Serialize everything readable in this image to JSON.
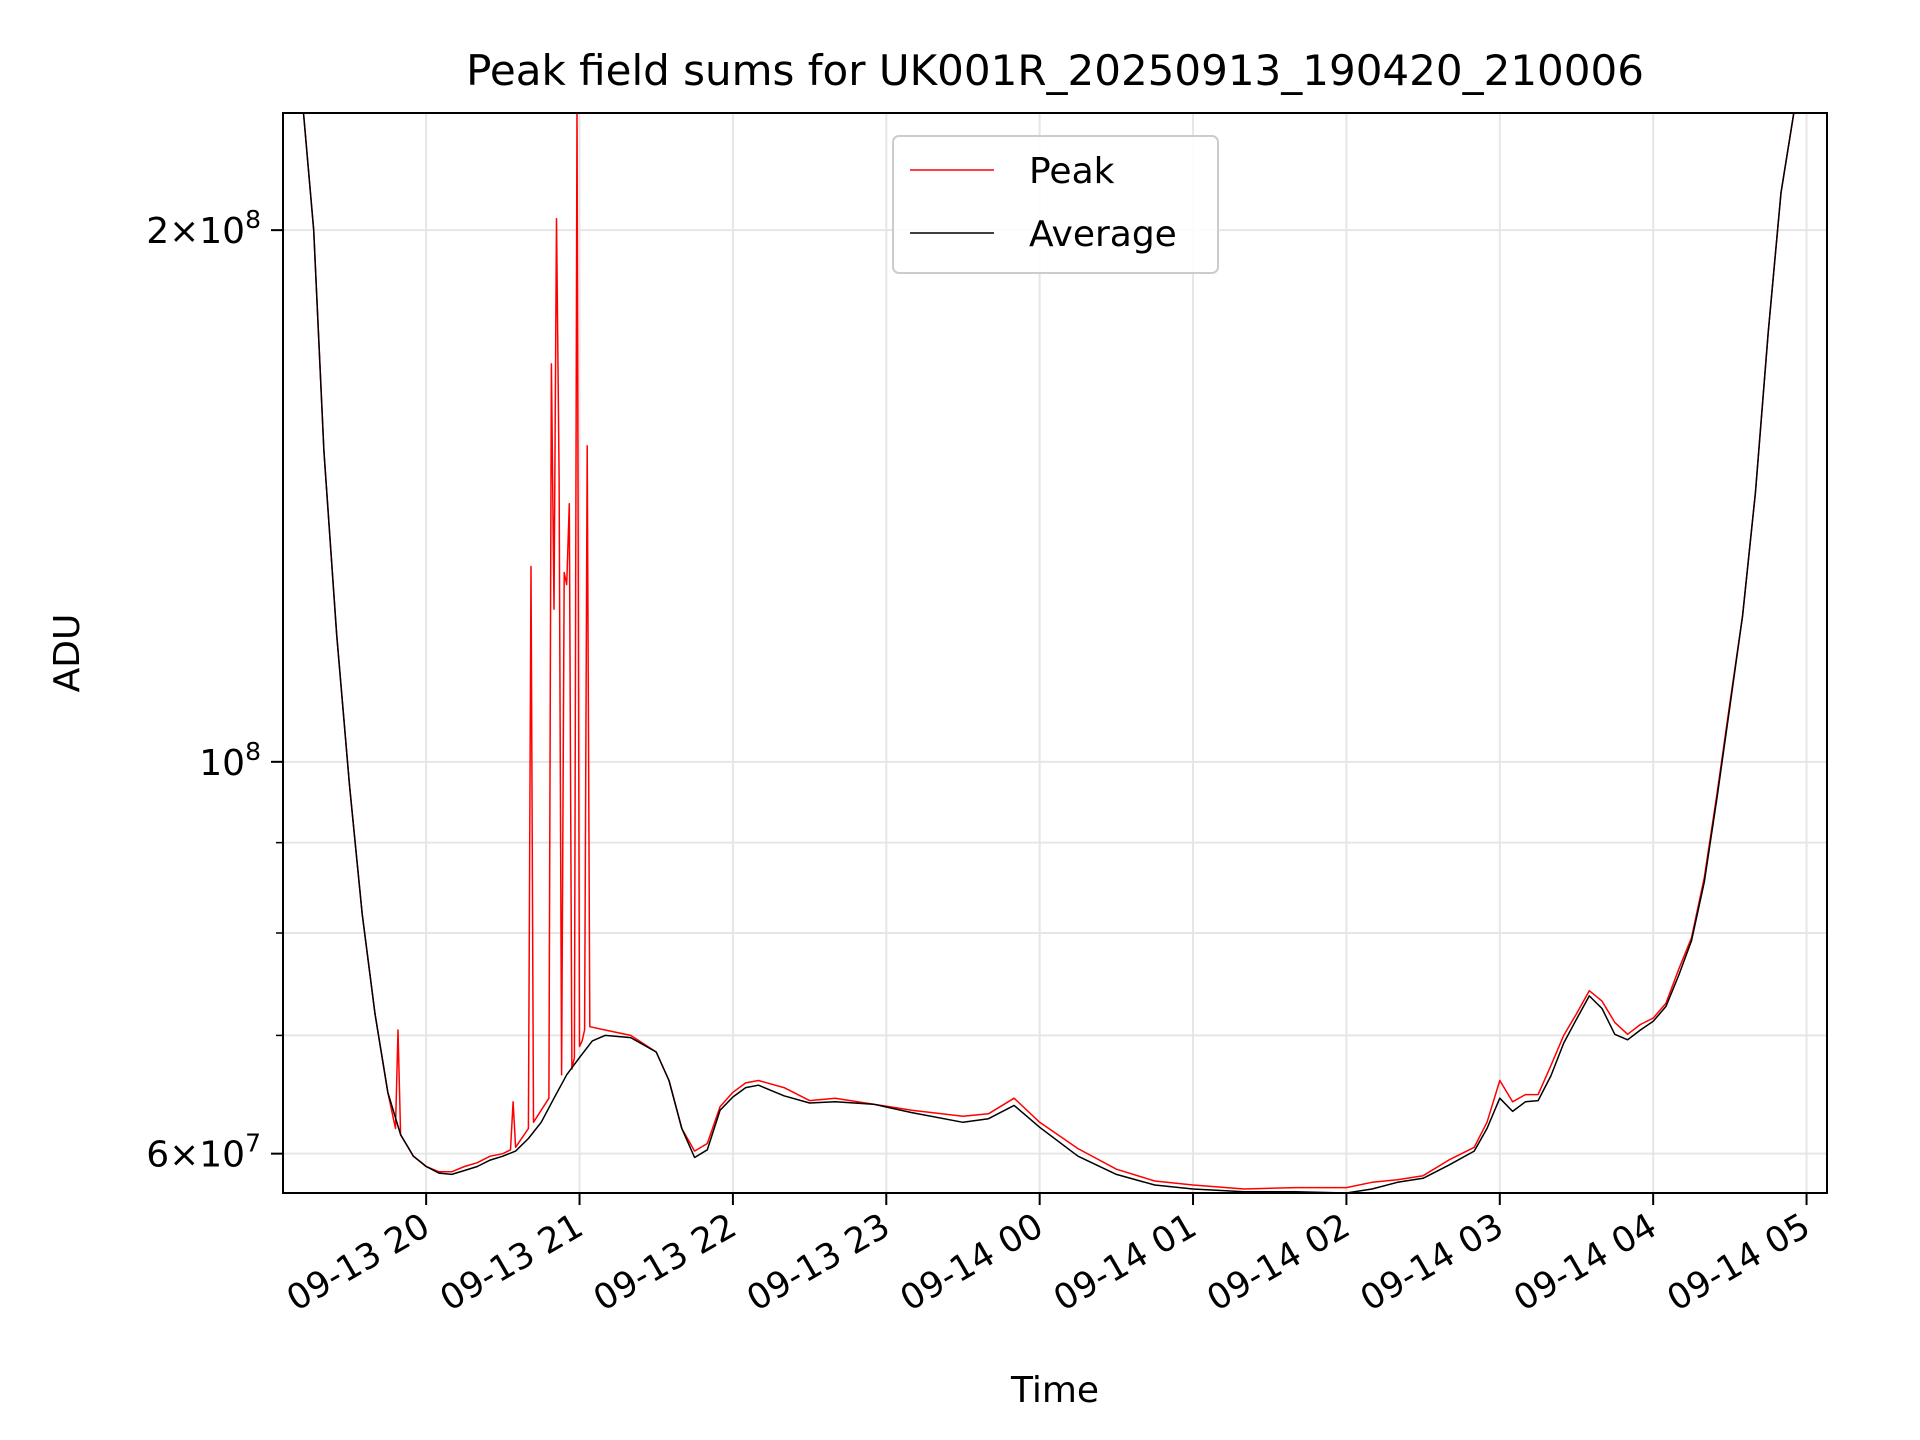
{
  "chart_data": {
    "type": "line",
    "title": "Peak field sums for UK001R_20250913_190420_210006",
    "xlabel": "Time",
    "ylabel": "ADU",
    "yscale": "log",
    "xlim": [
      "2025-09-13 19:04",
      "2025-09-14 05:08"
    ],
    "ylim": [
      57000000,
      233000000
    ],
    "x_ticks": [
      {
        "value": "2025-09-13 20:00",
        "label": "09-13 20"
      },
      {
        "value": "2025-09-13 21:00",
        "label": "09-13 21"
      },
      {
        "value": "2025-09-13 22:00",
        "label": "09-13 22"
      },
      {
        "value": "2025-09-13 23:00",
        "label": "09-13 23"
      },
      {
        "value": "2025-09-14 00:00",
        "label": "09-14 00"
      },
      {
        "value": "2025-09-14 01:00",
        "label": "09-14 01"
      },
      {
        "value": "2025-09-14 02:00",
        "label": "09-14 02"
      },
      {
        "value": "2025-09-14 03:00",
        "label": "09-14 03"
      },
      {
        "value": "2025-09-14 04:00",
        "label": "09-14 04"
      },
      {
        "value": "2025-09-14 05:00",
        "label": "09-14 05"
      }
    ],
    "y_major_ticks": [
      {
        "value": 60000000,
        "mantissa": "6",
        "base": "10",
        "exponent": "7"
      },
      {
        "value": 100000000,
        "mantissa": "",
        "base": "10",
        "exponent": "8"
      },
      {
        "value": 200000000,
        "mantissa": "2",
        "base": "10",
        "exponent": "8"
      }
    ],
    "y_minor_ticks": [
      70000000,
      80000000,
      90000000
    ],
    "grid": true,
    "legend_position": "upper-center",
    "series": [
      {
        "name": "Peak",
        "color": "#ff0000",
        "x": [
          "2025-09-13 19:04",
          "2025-09-13 19:12",
          "2025-09-13 19:16",
          "2025-09-13 19:20",
          "2025-09-13 19:25",
          "2025-09-13 19:30",
          "2025-09-13 19:35",
          "2025-09-13 19:40",
          "2025-09-13 19:45",
          "2025-09-13 19:48",
          "2025-09-13 19:49",
          "2025-09-13 19:50",
          "2025-09-13 19:55",
          "2025-09-13 20:00",
          "2025-09-13 20:05",
          "2025-09-13 20:10",
          "2025-09-13 20:15",
          "2025-09-13 20:20",
          "2025-09-13 20:25",
          "2025-09-13 20:30",
          "2025-09-13 20:33",
          "2025-09-13 20:34",
          "2025-09-13 20:35",
          "2025-09-13 20:40",
          "2025-09-13 20:41",
          "2025-09-13 20:42",
          "2025-09-13 20:45",
          "2025-09-13 20:48",
          "2025-09-13 20:49",
          "2025-09-13 20:50",
          "2025-09-13 20:51",
          "2025-09-13 20:52",
          "2025-09-13 20:53",
          "2025-09-13 20:54",
          "2025-09-13 20:55",
          "2025-09-13 20:56",
          "2025-09-13 20:57",
          "2025-09-13 20:58",
          "2025-09-13 20:59",
          "2025-09-13 21:00",
          "2025-09-13 21:01",
          "2025-09-13 21:02",
          "2025-09-13 21:03",
          "2025-09-13 21:04",
          "2025-09-13 21:10",
          "2025-09-13 21:20",
          "2025-09-13 21:30",
          "2025-09-13 21:35",
          "2025-09-13 21:40",
          "2025-09-13 21:45",
          "2025-09-13 21:50",
          "2025-09-13 21:55",
          "2025-09-13 22:00",
          "2025-09-13 22:05",
          "2025-09-13 22:10",
          "2025-09-13 22:20",
          "2025-09-13 22:30",
          "2025-09-13 22:40",
          "2025-09-13 22:55",
          "2025-09-13 23:10",
          "2025-09-13 23:30",
          "2025-09-13 23:40",
          "2025-09-13 23:50",
          "2025-09-14 00:00",
          "2025-09-14 00:15",
          "2025-09-14 00:30",
          "2025-09-14 00:45",
          "2025-09-14 01:00",
          "2025-09-14 01:20",
          "2025-09-14 01:40",
          "2025-09-14 02:00",
          "2025-09-14 02:10",
          "2025-09-14 02:20",
          "2025-09-14 02:30",
          "2025-09-14 02:40",
          "2025-09-14 02:50",
          "2025-09-14 02:55",
          "2025-09-14 03:00",
          "2025-09-14 03:05",
          "2025-09-14 03:10",
          "2025-09-14 03:15",
          "2025-09-14 03:20",
          "2025-09-14 03:25",
          "2025-09-14 03:30",
          "2025-09-14 03:35",
          "2025-09-14 03:40",
          "2025-09-14 03:45",
          "2025-09-14 03:50",
          "2025-09-14 03:55",
          "2025-09-14 04:00",
          "2025-09-14 04:05",
          "2025-09-14 04:10",
          "2025-09-14 04:15",
          "2025-09-14 04:20",
          "2025-09-14 04:25",
          "2025-09-14 04:30",
          "2025-09-14 04:35",
          "2025-09-14 04:40",
          "2025-09-14 04:45",
          "2025-09-14 04:50",
          "2025-09-14 04:55",
          "2025-09-14 05:08"
        ],
        "y": [
          233000000,
          233000000,
          200000000,
          150000000,
          118000000,
          97000000,
          82000000,
          72000000,
          65000000,
          62000000,
          70500000,
          61500000,
          59800000,
          59000000,
          58600000,
          58600000,
          59000000,
          59300000,
          59800000,
          60000000,
          60300000,
          64200000,
          60500000,
          62000000,
          129000000,
          62500000,
          63500000,
          64500000,
          168000000,
          122000000,
          203000000,
          145000000,
          66500000,
          128000000,
          126000000,
          140000000,
          67000000,
          68000000,
          236000000,
          69000000,
          69500000,
          70500000,
          151000000,
          70800000,
          70500000,
          70000000,
          68500000,
          66000000,
          62000000,
          60200000,
          60800000,
          63800000,
          65000000,
          65800000,
          66000000,
          65400000,
          64300000,
          64500000,
          64000000,
          63500000,
          63000000,
          63200000,
          64500000,
          62500000,
          60400000,
          58800000,
          57900000,
          57600000,
          57300000,
          57400000,
          57400000,
          57800000,
          58000000,
          58300000,
          59500000,
          60500000,
          62500000,
          66000000,
          64200000,
          64800000,
          64800000,
          67300000,
          70000000,
          72000000,
          74200000,
          73200000,
          71200000,
          70100000,
          71000000,
          71600000,
          73000000,
          76300000,
          79500000,
          86000000,
          96000000,
          108000000,
          121000000,
          142000000,
          175000000,
          210000000,
          233000000,
          233000000
        ]
      },
      {
        "name": "Average",
        "color": "#000000",
        "x": [
          "2025-09-13 19:04",
          "2025-09-13 19:12",
          "2025-09-13 19:16",
          "2025-09-13 19:20",
          "2025-09-13 19:25",
          "2025-09-13 19:30",
          "2025-09-13 19:35",
          "2025-09-13 19:40",
          "2025-09-13 19:45",
          "2025-09-13 19:50",
          "2025-09-13 19:55",
          "2025-09-13 20:00",
          "2025-09-13 20:05",
          "2025-09-13 20:10",
          "2025-09-13 20:15",
          "2025-09-13 20:20",
          "2025-09-13 20:25",
          "2025-09-13 20:30",
          "2025-09-13 20:35",
          "2025-09-13 20:40",
          "2025-09-13 20:45",
          "2025-09-13 20:50",
          "2025-09-13 20:55",
          "2025-09-13 21:00",
          "2025-09-13 21:05",
          "2025-09-13 21:10",
          "2025-09-13 21:20",
          "2025-09-13 21:30",
          "2025-09-13 21:35",
          "2025-09-13 21:40",
          "2025-09-13 21:45",
          "2025-09-13 21:50",
          "2025-09-13 21:55",
          "2025-09-13 22:00",
          "2025-09-13 22:05",
          "2025-09-13 22:10",
          "2025-09-13 22:20",
          "2025-09-13 22:30",
          "2025-09-13 22:40",
          "2025-09-13 22:55",
          "2025-09-13 23:10",
          "2025-09-13 23:30",
          "2025-09-13 23:40",
          "2025-09-13 23:50",
          "2025-09-14 00:00",
          "2025-09-14 00:15",
          "2025-09-14 00:30",
          "2025-09-14 00:45",
          "2025-09-14 01:00",
          "2025-09-14 01:20",
          "2025-09-14 01:40",
          "2025-09-14 02:00",
          "2025-09-14 02:10",
          "2025-09-14 02:20",
          "2025-09-14 02:30",
          "2025-09-14 02:40",
          "2025-09-14 02:50",
          "2025-09-14 02:55",
          "2025-09-14 03:00",
          "2025-09-14 03:05",
          "2025-09-14 03:10",
          "2025-09-14 03:15",
          "2025-09-14 03:20",
          "2025-09-14 03:25",
          "2025-09-14 03:30",
          "2025-09-14 03:35",
          "2025-09-14 03:40",
          "2025-09-14 03:45",
          "2025-09-14 03:50",
          "2025-09-14 03:55",
          "2025-09-14 04:00",
          "2025-09-14 04:05",
          "2025-09-14 04:10",
          "2025-09-14 04:15",
          "2025-09-14 04:20",
          "2025-09-14 04:25",
          "2025-09-14 04:30",
          "2025-09-14 04:35",
          "2025-09-14 04:40",
          "2025-09-14 04:45",
          "2025-09-14 04:50",
          "2025-09-14 04:55",
          "2025-09-14 05:08"
        ],
        "y": [
          233000000,
          233000000,
          200000000,
          150000000,
          118000000,
          97000000,
          82000000,
          72000000,
          65000000,
          61500000,
          59800000,
          59000000,
          58500000,
          58400000,
          58700000,
          59000000,
          59500000,
          59800000,
          60200000,
          61200000,
          62500000,
          64500000,
          66500000,
          68000000,
          69500000,
          70000000,
          69800000,
          68500000,
          66000000,
          62000000,
          59700000,
          60300000,
          63500000,
          64600000,
          65400000,
          65600000,
          64700000,
          64100000,
          64200000,
          64000000,
          63300000,
          62500000,
          62800000,
          63900000,
          62100000,
          59800000,
          58400000,
          57600000,
          57300000,
          57100000,
          57100000,
          57000000,
          57300000,
          57800000,
          58100000,
          59100000,
          60200000,
          62000000,
          64500000,
          63400000,
          64200000,
          64300000,
          66400000,
          69300000,
          71500000,
          73700000,
          72500000,
          70100000,
          69600000,
          70500000,
          71300000,
          72700000,
          75700000,
          79200000,
          85500000,
          95500000,
          107500000,
          121000000,
          142000000,
          175000000,
          210000000,
          233000000,
          233000000
        ]
      }
    ]
  }
}
